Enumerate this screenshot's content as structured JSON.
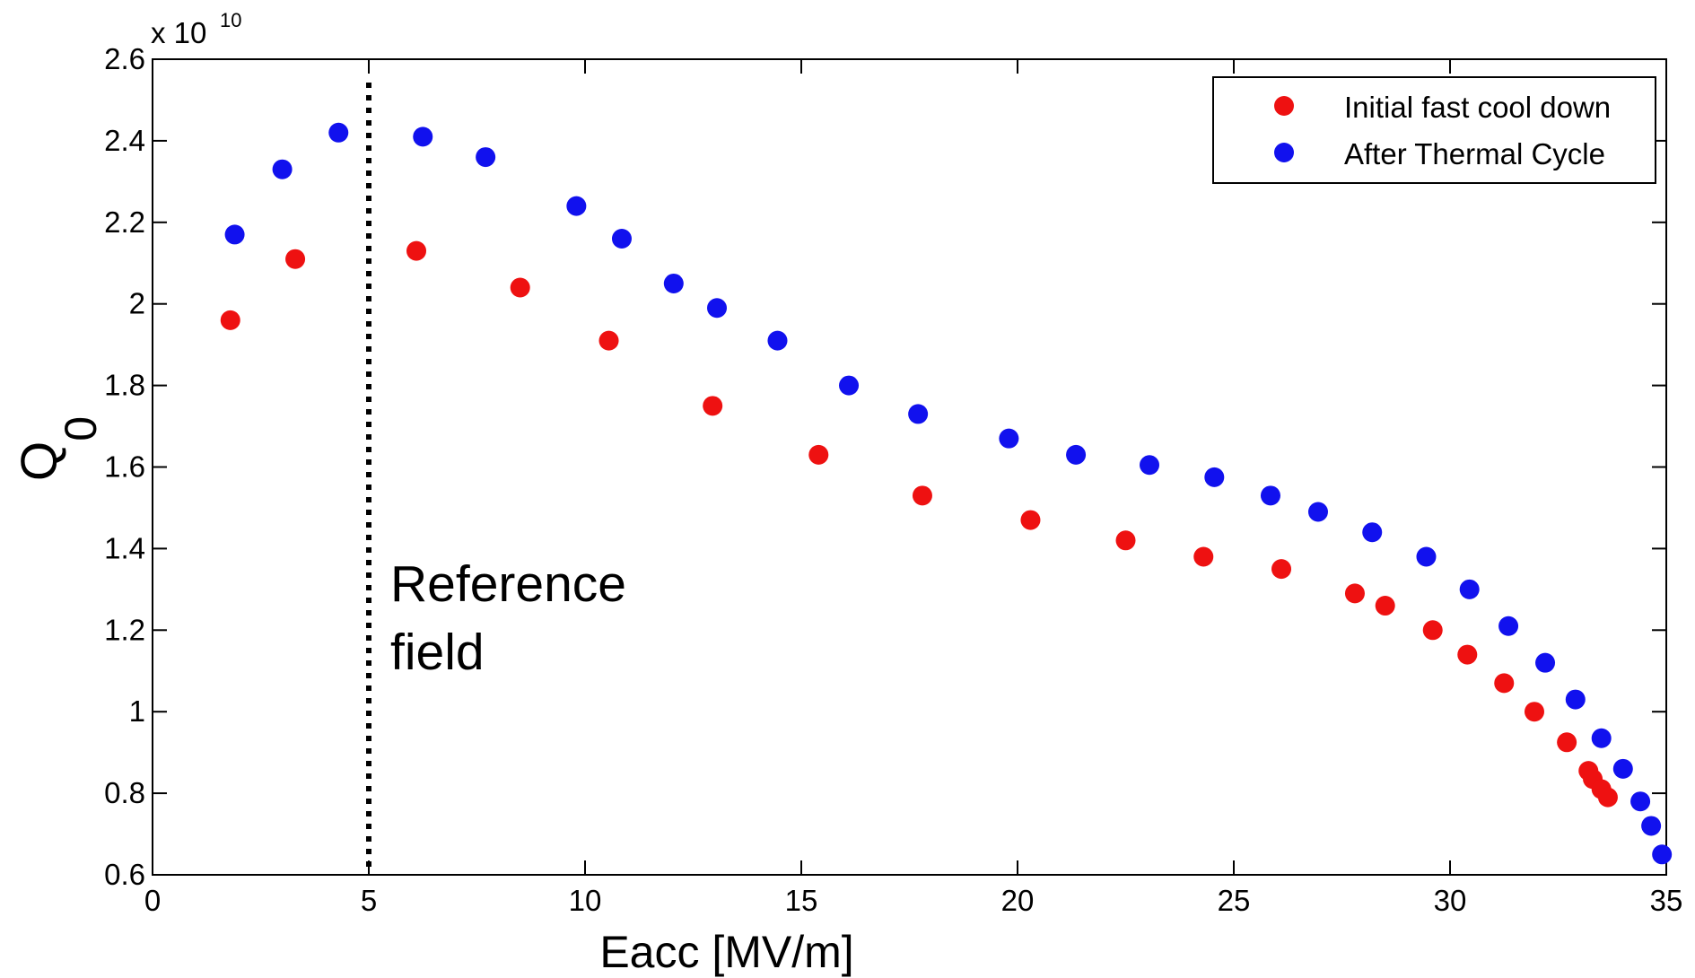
{
  "chart_data": {
    "type": "scatter",
    "xlabel": "Eacc [MV/m]",
    "ylabel": "Q\n0",
    "y_multiplier": "x 10",
    "y_multiplier_exp": "10",
    "xlim": [
      0,
      35
    ],
    "ylim": [
      0.6,
      2.6
    ],
    "x_ticks": [
      "0",
      "5",
      "10",
      "15",
      "20",
      "25",
      "30",
      "35"
    ],
    "y_ticks": [
      "0.6",
      "0.8",
      "1",
      "1.2",
      "1.4",
      "1.6",
      "1.8",
      "2",
      "2.2",
      "2.4",
      "2.6"
    ],
    "grid": false,
    "legend_position": "top-right",
    "reference_line_x": 5,
    "annotation": [
      "Reference",
      "field"
    ],
    "series": [
      {
        "name": "Initial fast cool down",
        "color": "#ee1111",
        "points": [
          [
            1.8,
            1.96
          ],
          [
            3.3,
            2.11
          ],
          [
            6.1,
            2.13
          ],
          [
            8.5,
            2.04
          ],
          [
            10.55,
            1.91
          ],
          [
            12.95,
            1.75
          ],
          [
            15.4,
            1.63
          ],
          [
            17.8,
            1.53
          ],
          [
            20.3,
            1.47
          ],
          [
            22.5,
            1.42
          ],
          [
            24.3,
            1.38
          ],
          [
            26.1,
            1.35
          ],
          [
            27.8,
            1.29
          ],
          [
            28.5,
            1.26
          ],
          [
            29.6,
            1.2
          ],
          [
            30.4,
            1.14
          ],
          [
            31.25,
            1.07
          ],
          [
            31.95,
            1.0
          ],
          [
            32.7,
            0.925
          ],
          [
            33.2,
            0.855
          ],
          [
            33.3,
            0.835
          ],
          [
            33.5,
            0.81
          ],
          [
            33.65,
            0.79
          ]
        ]
      },
      {
        "name": "After Thermal Cycle",
        "color": "#1111ee",
        "points": [
          [
            1.9,
            2.17
          ],
          [
            3.0,
            2.33
          ],
          [
            4.3,
            2.42
          ],
          [
            6.25,
            2.41
          ],
          [
            7.7,
            2.36
          ],
          [
            9.8,
            2.24
          ],
          [
            10.85,
            2.16
          ],
          [
            12.05,
            2.05
          ],
          [
            13.05,
            1.99
          ],
          [
            14.45,
            1.91
          ],
          [
            16.1,
            1.8
          ],
          [
            17.7,
            1.73
          ],
          [
            19.8,
            1.67
          ],
          [
            21.35,
            1.63
          ],
          [
            23.05,
            1.605
          ],
          [
            24.55,
            1.575
          ],
          [
            25.85,
            1.53
          ],
          [
            26.95,
            1.49
          ],
          [
            28.2,
            1.44
          ],
          [
            29.45,
            1.38
          ],
          [
            30.45,
            1.3
          ],
          [
            31.35,
            1.21
          ],
          [
            32.2,
            1.12
          ],
          [
            32.9,
            1.03
          ],
          [
            33.5,
            0.935
          ],
          [
            34.0,
            0.86
          ],
          [
            34.4,
            0.78
          ],
          [
            34.65,
            0.72
          ],
          [
            34.9,
            0.65
          ]
        ]
      }
    ]
  }
}
